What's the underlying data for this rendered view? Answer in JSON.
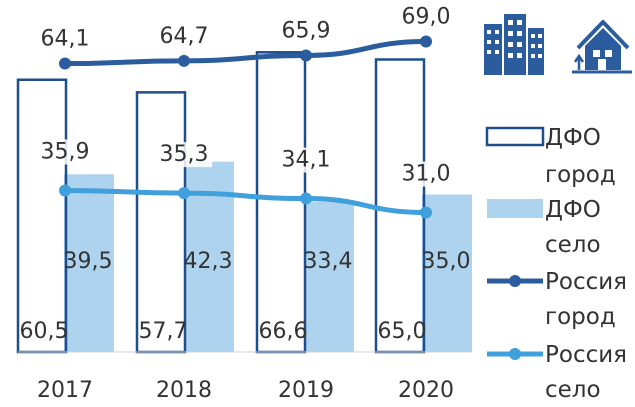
{
  "chart_data": {
    "type": "bar",
    "categories": [
      "2017",
      "2018",
      "2019",
      "2020"
    ],
    "series": [
      {
        "name": "ДФО город",
        "kind": "bar",
        "style": "outline",
        "values": [
          60.5,
          57.7,
          66.6,
          65.0
        ],
        "labels": [
          "60,5",
          "57,7",
          "66,6",
          "65,0"
        ]
      },
      {
        "name": "ДФО село",
        "kind": "bar",
        "style": "filled",
        "values": [
          39.5,
          42.3,
          33.4,
          35.0
        ],
        "labels": [
          "39,5",
          "42,3",
          "33,4",
          "35,0"
        ]
      },
      {
        "name": "Россия город",
        "kind": "line",
        "values": [
          64.1,
          64.7,
          65.9,
          69.0
        ],
        "labels": [
          "64,1",
          "64,7",
          "65,9",
          "69,0"
        ]
      },
      {
        "name": "Россия село",
        "kind": "line",
        "values": [
          35.9,
          35.3,
          34.1,
          31.0
        ],
        "labels": [
          "35,9",
          "35,3",
          "34,1",
          "31,0"
        ]
      }
    ],
    "ylim": [
      0,
      75
    ],
    "grid": false,
    "legend_position": "right",
    "legend": [
      {
        "line1": "ДФО",
        "line2": "город"
      },
      {
        "line1": "ДФО",
        "line2": "село"
      },
      {
        "line1": "Россия",
        "line2": "город"
      },
      {
        "line1": "Россия",
        "line2": "село"
      }
    ]
  },
  "icons": {
    "left": "city-buildings-icon",
    "right": "rural-house-icon"
  },
  "colors": {
    "city_bar_outline": "#1f4e8c",
    "village_bar_fill": "#aed3ee",
    "russia_city_line": "#2b5c9e",
    "russia_village_line": "#3fa0dc",
    "icon": "#2b5c9e"
  }
}
